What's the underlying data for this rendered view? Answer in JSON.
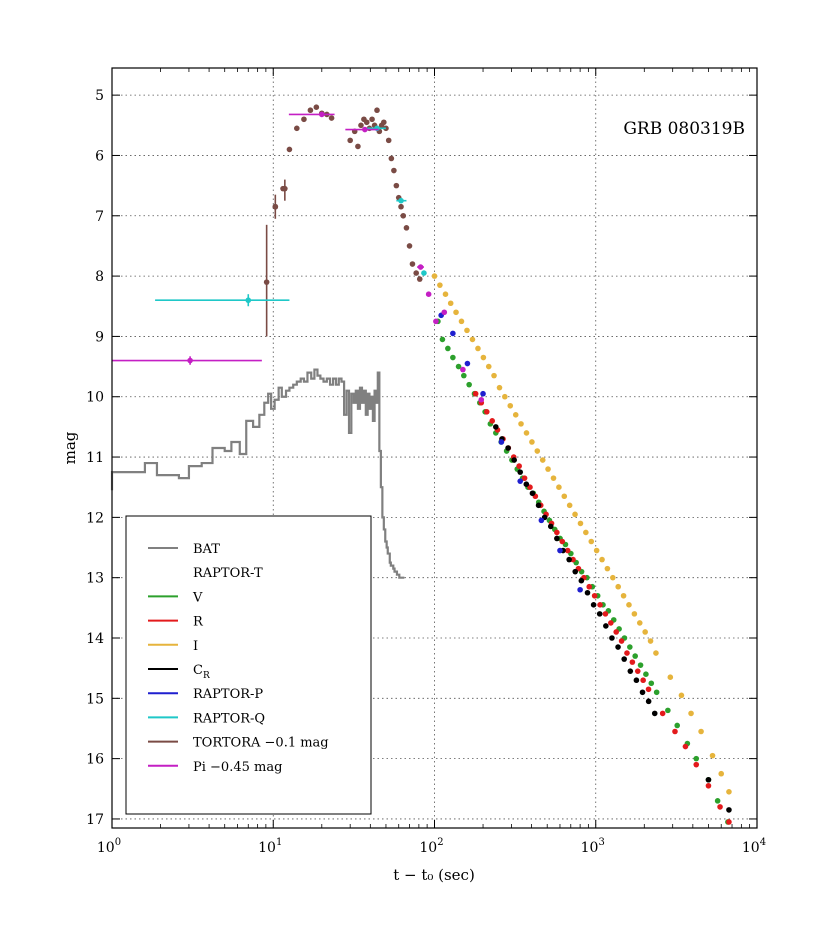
{
  "chart_data": {
    "type": "scatter",
    "title": "GRB 080319B",
    "xlabel": "t − t₀ (sec)",
    "ylabel": "mag",
    "x_scale": "log",
    "xlim": [
      1,
      10000
    ],
    "ylim": [
      17.15,
      4.55
    ],
    "y_inverted": true,
    "grid": true,
    "legend_position": "bottom-left",
    "x_ticks": [
      {
        "value": 1,
        "base": "10",
        "exp": "0"
      },
      {
        "value": 10,
        "base": "10",
        "exp": "1"
      },
      {
        "value": 100,
        "base": "10",
        "exp": "2"
      },
      {
        "value": 1000,
        "base": "10",
        "exp": "3"
      },
      {
        "value": 10000,
        "base": "10",
        "exp": "4"
      }
    ],
    "y_ticks": [
      5,
      6,
      7,
      8,
      9,
      10,
      11,
      12,
      13,
      14,
      15,
      16,
      17
    ],
    "legend": [
      {
        "label": "BAT",
        "color": "#808080",
        "sub": ""
      },
      {
        "label": "RAPTOR-T",
        "color": null,
        "sub": ""
      },
      {
        "label": "V",
        "color": "#2ca02c",
        "sub": ""
      },
      {
        "label": "R",
        "color": "#e31a1c",
        "sub": ""
      },
      {
        "label": "I",
        "color": "#e6b43c",
        "sub": ""
      },
      {
        "label": "C",
        "color": "#000000",
        "sub": "R"
      },
      {
        "label": "RAPTOR-P",
        "color": "#1f1fcf",
        "sub": ""
      },
      {
        "label": "RAPTOR-Q",
        "color": "#1fc8c8",
        "sub": ""
      },
      {
        "label": "TORTORA −0.1 mag",
        "color": "#7a4b45",
        "sub": ""
      },
      {
        "label": "Pi −0.45 mag",
        "color": "#c41fc4",
        "sub": ""
      }
    ],
    "series": [
      {
        "name": "BAT",
        "kind": "step",
        "color": "#808080",
        "x": [
          1,
          1.3,
          1.6,
          1.9,
          2.2,
          2.6,
          3.0,
          3.6,
          4.2,
          5.0,
          5.5,
          6.2,
          6.8,
          7.5,
          8.2,
          8.8,
          9.3,
          9.7,
          10.2,
          10.8,
          11.3,
          12.0,
          12.6,
          13.3,
          14.0,
          14.8,
          15.5,
          16.3,
          17.2,
          18.0,
          18.8,
          19.6,
          20.5,
          21.5,
          22.5,
          23.5,
          24.5,
          25.5,
          26.5,
          27.5,
          28.5,
          29.5,
          30.5,
          31.5,
          32.5,
          33.5,
          34.5,
          35.5,
          36.5,
          37.5,
          38.5,
          39.5,
          40.5,
          41.5,
          42.5,
          43.5,
          44.5,
          45.5,
          46.5,
          47.5,
          48.5,
          49.5,
          50.5,
          51.3,
          52.0,
          52.8,
          53.6,
          54.5,
          55.5,
          56.5,
          57.5,
          58.5,
          59.5,
          60.5,
          61.5,
          62.5,
          63.5,
          64.5,
          65.0
        ],
        "y": [
          11.55,
          11.25,
          11.25,
          11.1,
          11.3,
          11.3,
          11.35,
          11.15,
          11.1,
          10.85,
          10.9,
          10.75,
          10.95,
          10.4,
          10.5,
          10.3,
          10.1,
          9.95,
          10.2,
          10.05,
          9.85,
          10.0,
          9.9,
          9.85,
          9.8,
          9.75,
          9.7,
          9.75,
          9.6,
          9.7,
          9.55,
          9.65,
          9.7,
          9.75,
          9.7,
          9.8,
          9.7,
          9.8,
          9.7,
          9.75,
          10.3,
          9.9,
          10.6,
          9.95,
          10.1,
          9.9,
          10.2,
          9.85,
          10.1,
          9.9,
          10.3,
          9.95,
          10.2,
          10.0,
          10.4,
          9.9,
          10.1,
          9.6,
          10.9,
          11.5,
          12.0,
          12.2,
          12.4,
          12.5,
          12.6,
          12.6,
          12.75,
          12.8,
          12.8,
          12.85,
          12.9,
          12.9,
          12.95,
          12.95,
          13.0,
          13.0,
          13.0,
          13.0,
          13.0
        ]
      },
      {
        "name": "V",
        "kind": "points",
        "color": "#2ca02c",
        "x": [
          105,
          112,
          121,
          130,
          141,
          152,
          164,
          177,
          191,
          206,
          222,
          240,
          259,
          280,
          302,
          326,
          352,
          380,
          410,
          443,
          478,
          516,
          557,
          601,
          649,
          701,
          756,
          817,
          882,
          952,
          1028,
          1109,
          1198,
          1293,
          1396,
          1507,
          1627,
          1756,
          1896,
          2047,
          2210,
          2386,
          2800,
          3200,
          3700,
          4200,
          5000,
          5700,
          6600
        ],
        "y": [
          8.75,
          9.05,
          9.2,
          9.35,
          9.5,
          9.65,
          9.8,
          9.95,
          10.1,
          10.25,
          10.45,
          10.6,
          10.75,
          10.9,
          11.05,
          11.2,
          11.35,
          11.5,
          11.6,
          11.75,
          11.9,
          12.05,
          12.2,
          12.35,
          12.45,
          12.6,
          12.75,
          12.9,
          13.0,
          13.15,
          13.3,
          13.45,
          13.55,
          13.7,
          13.85,
          14.0,
          14.15,
          14.3,
          14.45,
          14.6,
          14.75,
          14.9,
          15.2,
          15.45,
          15.75,
          16.0,
          16.35,
          16.7,
          17.05
        ]
      },
      {
        "name": "I",
        "kind": "points",
        "color": "#e6b43c",
        "x": [
          100,
          108,
          117,
          126,
          136,
          147,
          159,
          172,
          186,
          201,
          217,
          234,
          253,
          273,
          295,
          319,
          344,
          372,
          402,
          434,
          469,
          506,
          547,
          591,
          638,
          689,
          744,
          804,
          868,
          938,
          1013,
          1094,
          1181,
          1276,
          1378,
          1488,
          1607,
          1736,
          1875,
          2025,
          2187,
          2362,
          2900,
          3400,
          3900,
          4500,
          5300,
          6000,
          6700
        ],
        "y": [
          8.0,
          8.15,
          8.3,
          8.45,
          8.6,
          8.75,
          8.9,
          9.05,
          9.2,
          9.35,
          9.5,
          9.65,
          9.85,
          10.0,
          10.15,
          10.3,
          10.45,
          10.6,
          10.75,
          10.9,
          11.05,
          11.2,
          11.35,
          11.5,
          11.65,
          11.8,
          11.95,
          12.1,
          12.25,
          12.4,
          12.55,
          12.7,
          12.85,
          13.0,
          13.15,
          13.3,
          13.45,
          13.6,
          13.75,
          13.9,
          14.05,
          14.25,
          14.65,
          14.95,
          15.25,
          15.55,
          15.95,
          16.25,
          16.55
        ]
      },
      {
        "name": "R",
        "kind": "points",
        "color": "#e31a1c",
        "x": [
          180,
          195,
          211,
          228,
          246,
          266,
          287,
          310,
          335,
          362,
          391,
          422,
          456,
          492,
          532,
          574,
          620,
          670,
          723,
          781,
          844,
          911,
          984,
          1063,
          1148,
          1240,
          1339,
          1446,
          1562,
          1687,
          1822,
          1968,
          2125,
          2600,
          3100,
          3600,
          4200,
          5000,
          5900,
          6700
        ],
        "y": [
          9.95,
          10.1,
          10.25,
          10.4,
          10.55,
          10.7,
          10.85,
          11.0,
          11.15,
          11.35,
          11.5,
          11.65,
          11.8,
          11.95,
          12.1,
          12.25,
          12.4,
          12.55,
          12.7,
          12.85,
          13.0,
          13.15,
          13.3,
          13.45,
          13.6,
          13.75,
          13.9,
          14.05,
          14.25,
          14.4,
          14.55,
          14.7,
          14.85,
          15.25,
          15.55,
          15.8,
          16.1,
          16.45,
          16.8,
          17.05
        ]
      },
      {
        "name": "C_R",
        "kind": "points",
        "color": "#000000",
        "x": [
          240,
          262,
          286,
          312,
          340,
          371,
          405,
          442,
          482,
          526,
          574,
          627,
          684,
          746,
          814,
          889,
          970,
          1058,
          1155,
          1260,
          1375,
          1501,
          1638,
          1787,
          1950,
          2128,
          2322,
          5000,
          6700
        ],
        "y": [
          10.5,
          10.7,
          10.85,
          11.05,
          11.25,
          11.45,
          11.6,
          11.8,
          12.0,
          12.15,
          12.35,
          12.55,
          12.7,
          12.9,
          13.05,
          13.25,
          13.45,
          13.6,
          13.8,
          14.0,
          14.15,
          14.35,
          14.55,
          14.7,
          14.9,
          15.05,
          15.25,
          16.35,
          16.85
        ]
      },
      {
        "name": "RAPTOR-P",
        "kind": "points",
        "color": "#1f1fcf",
        "x": [
          110,
          130,
          160,
          200,
          260,
          340,
          460,
          600,
          800
        ],
        "y": [
          8.65,
          8.95,
          9.45,
          9.95,
          10.75,
          11.4,
          12.05,
          12.55,
          13.2
        ]
      },
      {
        "name": "Pi",
        "kind": "points",
        "color": "#c41fc4",
        "x": [
          92,
          102,
          115,
          150,
          195
        ],
        "y": [
          8.3,
          8.75,
          8.6,
          9.55,
          10.05
        ]
      },
      {
        "name": "RAPTOR-Q",
        "kind": "points",
        "color": "#1fc8c8",
        "x": [
          86
        ],
        "y": [
          7.95
        ]
      },
      {
        "name": "TORTORA",
        "kind": "points",
        "color": "#7a4b45",
        "x": [
          10.3,
          11.5,
          12.6,
          14.0,
          15.5,
          17.0,
          18.5,
          20.0,
          21.5,
          23.0,
          30,
          32,
          33.5,
          35,
          36.5,
          38,
          39.5,
          41,
          42.5,
          44,
          45.5,
          47,
          48.5,
          50,
          52,
          54,
          56,
          58,
          60,
          62,
          64,
          67,
          70,
          73,
          77,
          81
        ],
        "y": [
          6.85,
          6.55,
          5.9,
          5.55,
          5.4,
          5.25,
          5.2,
          5.3,
          5.32,
          5.38,
          5.75,
          5.6,
          5.85,
          5.5,
          5.4,
          5.45,
          5.55,
          5.4,
          5.5,
          5.25,
          5.6,
          5.5,
          5.45,
          5.55,
          5.75,
          6.05,
          6.25,
          6.5,
          6.7,
          6.85,
          7.0,
          7.2,
          7.5,
          7.8,
          7.95,
          8.05
        ]
      }
    ],
    "error_bars": [
      {
        "series": "TORTORA",
        "color": "#7a4b45",
        "x": 9.1,
        "y": 8.1,
        "xerr": [
          8.8,
          9.4
        ],
        "yerr": [
          7.15,
          9.0
        ]
      },
      {
        "series": "TORTORA",
        "color": "#7a4b45",
        "x": 11.8,
        "y": 6.55,
        "xerr": null,
        "yerr": [
          6.4,
          6.75
        ]
      },
      {
        "series": "TORTORA",
        "color": "#7a4b45",
        "x": 10.3,
        "y": 6.85,
        "xerr": null,
        "yerr": [
          6.65,
          7.05
        ]
      },
      {
        "series": "RAPTOR-Q",
        "color": "#1fc8c8",
        "x": 7.0,
        "y": 8.4,
        "xerr": [
          1.85,
          12.6
        ],
        "yerr": [
          8.3,
          8.5
        ]
      },
      {
        "series": "RAPTOR-Q",
        "color": "#1fc8c8",
        "x": 44,
        "y": 5.55,
        "xerr": [
          38,
          50
        ],
        "yerr": null
      },
      {
        "series": "RAPTOR-Q",
        "color": "#1fc8c8",
        "x": 62,
        "y": 6.75,
        "xerr": [
          58,
          67
        ],
        "yerr": null
      },
      {
        "series": "Pi",
        "color": "#c41fc4",
        "x": 3.05,
        "y": 9.4,
        "xerr": [
          1.0,
          8.5
        ],
        "yerr": [
          9.33,
          9.47
        ]
      },
      {
        "series": "Pi",
        "color": "#c41fc4",
        "x": 20,
        "y": 5.32,
        "xerr": [
          12.5,
          24
        ],
        "yerr": null
      },
      {
        "series": "Pi",
        "color": "#c41fc4",
        "x": 37,
        "y": 5.57,
        "xerr": [
          28,
          45
        ],
        "yerr": null
      },
      {
        "series": "Pi",
        "color": "#c41fc4",
        "x": 82,
        "y": 7.85,
        "xerr": [
          78,
          86
        ],
        "yerr": null
      }
    ]
  }
}
